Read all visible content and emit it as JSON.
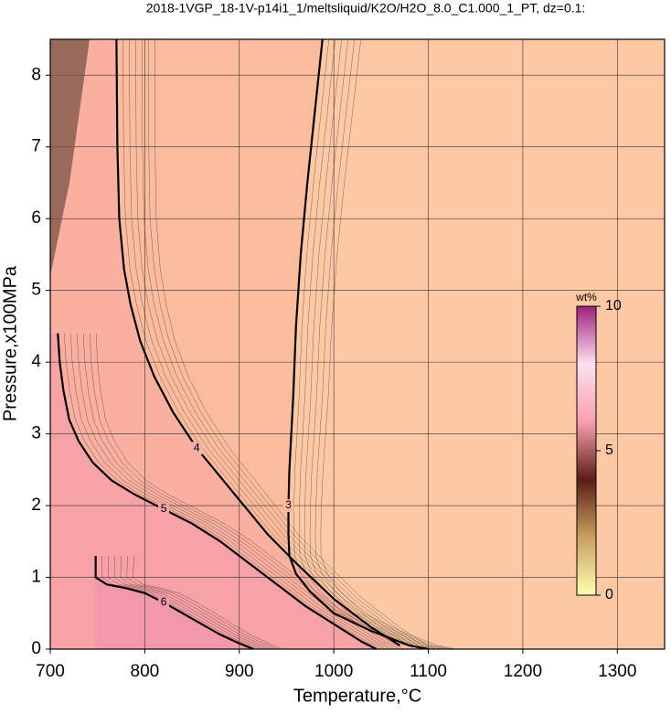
{
  "chart_data": {
    "type": "contour",
    "title": "2018-1VGP_18-1V-p14i1_1/meltsliquid/K2O/H2O_8.0_C1.000_1_PT, dz=0.1:",
    "x_label": "Temperature,°C",
    "y_label": "Pressure,x100MPa",
    "xlim": [
      700,
      1350
    ],
    "ylim": [
      0,
      8.5
    ],
    "xticks": [
      700,
      800,
      900,
      1000,
      1100,
      1200,
      1300
    ],
    "yticks": [
      0,
      1,
      2,
      3,
      4,
      5,
      6,
      7,
      8
    ],
    "grid": true,
    "background": "#fdc9a5",
    "contours": [
      {
        "level": 3,
        "color": "#fbbc9e",
        "x": [
          988,
          980,
          972,
          965,
          960,
          957,
          955,
          953,
          952,
          952,
          953,
          960,
          975,
          1000,
          1040,
          1080,
          1100
        ],
        "y": [
          8.5,
          7.5,
          6.5,
          5.5,
          4.5,
          3.5,
          3,
          2.5,
          2,
          1.6,
          1.3,
          1.05,
          0.8,
          0.5,
          0.25,
          0.05,
          0
        ]
      },
      {
        "level": 4,
        "color": "#f9b0a0",
        "x": [
          770,
          771,
          773,
          778,
          785,
          795,
          810,
          830,
          855,
          880,
          905,
          930,
          960,
          1000,
          1040,
          1070
        ],
        "y": [
          8.5,
          7,
          6,
          5.3,
          4.8,
          4.3,
          3.8,
          3.3,
          2.8,
          2.4,
          2.0,
          1.6,
          1.2,
          0.7,
          0.3,
          0.05
        ]
      },
      {
        "level": 5,
        "color": "#f6a2a6",
        "x": [
          708,
          710,
          714,
          720,
          730,
          745,
          765,
          790,
          820,
          850,
          880,
          910,
          940,
          970,
          1000,
          1030,
          1045
        ],
        "y": [
          4.4,
          4.0,
          3.6,
          3.2,
          2.9,
          2.6,
          2.35,
          2.15,
          1.95,
          1.75,
          1.5,
          1.2,
          0.9,
          0.6,
          0.35,
          0.1,
          0
        ]
      },
      {
        "level": 6,
        "color": "#f398ab",
        "x": [
          748,
          748,
          760,
          780,
          800,
          820,
          840,
          860,
          880,
          900,
          915
        ],
        "y": [
          1.3,
          1.0,
          0.9,
          0.85,
          0.78,
          0.65,
          0.5,
          0.35,
          0.2,
          0.08,
          0
        ]
      }
    ],
    "colorbar": {
      "label": "wt%",
      "lim": [
        0,
        10
      ],
      "ticks": [
        0,
        5,
        10
      ],
      "colors": [
        "#ffffb0",
        "#c8a060",
        "#5a1e14",
        "#f7a0b0",
        "#fde0f0",
        "#a0207c"
      ]
    }
  }
}
